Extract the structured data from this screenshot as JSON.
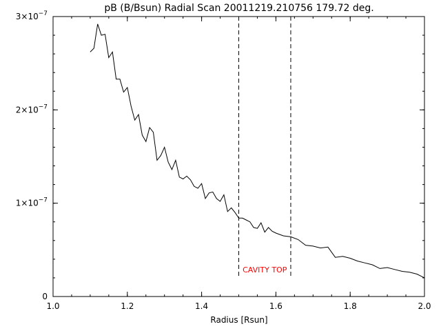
{
  "chart_data": {
    "type": "line",
    "title": "pB (B/Bsun) Radial Scan 20011219.210756 179.72 deg.",
    "xlabel": "Radius [Rsun]",
    "ylabel": "",
    "xlim": [
      1.0,
      2.0
    ],
    "ylim": [
      0,
      3e-07
    ],
    "x_ticks": [
      {
        "value": 1.0,
        "label": "1.0"
      },
      {
        "value": 1.2,
        "label": "1.2"
      },
      {
        "value": 1.4,
        "label": "1.4"
      },
      {
        "value": 1.6,
        "label": "1.6"
      },
      {
        "value": 1.8,
        "label": "1.8"
      },
      {
        "value": 2.0,
        "label": "2.0"
      }
    ],
    "y_ticks": [
      {
        "value": 0,
        "label": "0"
      },
      {
        "value": 1e-07,
        "label": "1×10",
        "exp": "−7"
      },
      {
        "value": 2e-07,
        "label": "2×10",
        "exp": "−7"
      },
      {
        "value": 3e-07,
        "label": "3×10",
        "exp": "−7"
      }
    ],
    "grid": false,
    "series": [
      {
        "color": "#000000",
        "x": [
          1.1,
          1.11,
          1.12,
          1.13,
          1.14,
          1.15,
          1.16,
          1.17,
          1.18,
          1.19,
          1.2,
          1.21,
          1.22,
          1.23,
          1.24,
          1.25,
          1.26,
          1.27,
          1.28,
          1.29,
          1.3,
          1.31,
          1.32,
          1.33,
          1.34,
          1.35,
          1.36,
          1.37,
          1.38,
          1.39,
          1.4,
          1.41,
          1.42,
          1.43,
          1.44,
          1.45,
          1.46,
          1.47,
          1.48,
          1.49,
          1.5,
          1.51,
          1.52,
          1.53,
          1.54,
          1.55,
          1.56,
          1.57,
          1.58,
          1.59,
          1.6,
          1.62,
          1.64,
          1.66,
          1.68,
          1.7,
          1.72,
          1.74,
          1.76,
          1.78,
          1.8,
          1.82,
          1.84,
          1.86,
          1.88,
          1.9,
          1.92,
          1.94,
          1.96,
          1.98,
          2.0
        ],
        "y": [
          2.62e-07,
          2.66e-07,
          2.92e-07,
          2.8e-07,
          2.81e-07,
          2.56e-07,
          2.62e-07,
          2.33e-07,
          2.33e-07,
          2.19e-07,
          2.24e-07,
          2.04e-07,
          1.89e-07,
          1.95e-07,
          1.73e-07,
          1.66e-07,
          1.81e-07,
          1.76e-07,
          1.46e-07,
          1.51e-07,
          1.6e-07,
          1.44e-07,
          1.36e-07,
          1.46e-07,
          1.28e-07,
          1.26e-07,
          1.29e-07,
          1.25e-07,
          1.18e-07,
          1.16e-07,
          1.21e-07,
          1.05e-07,
          1.11e-07,
          1.12e-07,
          1.05e-07,
          1.02e-07,
          1.09e-07,
          9.1e-08,
          9.5e-08,
          9e-08,
          8.4e-08,
          8.4e-08,
          8.2e-08,
          8e-08,
          7.4e-08,
          7.3e-08,
          7.9e-08,
          6.9e-08,
          7.4e-08,
          7e-08,
          6.8e-08,
          6.5e-08,
          6.4e-08,
          6.1e-08,
          5.5e-08,
          5.4e-08,
          5.2e-08,
          5.3e-08,
          4.2e-08,
          4.3e-08,
          4.1e-08,
          3.8e-08,
          3.6e-08,
          3.4e-08,
          3e-08,
          3.1e-08,
          2.9e-08,
          2.7e-08,
          2.6e-08,
          2.4e-08,
          2e-08
        ]
      }
    ],
    "annotations": [
      {
        "type": "vline",
        "x": 1.5,
        "style": "dashed"
      },
      {
        "type": "vline",
        "x": 1.64,
        "style": "dashed"
      },
      {
        "type": "text",
        "text": "CAVITY TOP",
        "x": 1.57,
        "y": 2.6e-08,
        "color": "#ff0000"
      }
    ]
  }
}
